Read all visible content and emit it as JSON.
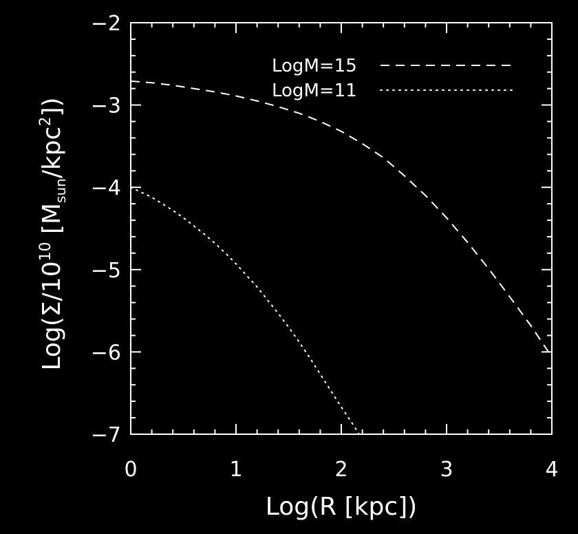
{
  "chart_data": {
    "type": "line",
    "background": "#000000",
    "foreground": "#ffffff",
    "title": "",
    "xlabel": "Log(R [kpc])",
    "ylabel": {
      "prefix": "Log(Σ/10",
      "exponent": "10",
      "open": " [M",
      "subscript": "sun",
      "middle": "/kpc",
      "power": "2",
      "close": "])"
    },
    "xlim": [
      0,
      4
    ],
    "ylim": [
      -7,
      -2
    ],
    "xticks": [
      0,
      1,
      2,
      3,
      4
    ],
    "xtick_labels": [
      "0",
      "1",
      "2",
      "3",
      "4"
    ],
    "yticks": [
      -2,
      -3,
      -4,
      -5,
      -6,
      -7
    ],
    "ytick_labels": [
      "−2",
      "−3",
      "−4",
      "−5",
      "−6",
      "−7"
    ],
    "minor_x_step": 0.2,
    "minor_y_step": 0.2,
    "grid": false,
    "legend_position": "top-right",
    "series": [
      {
        "name": "LogM=15",
        "style": "dashed",
        "x": [
          0.0,
          0.2,
          0.4,
          0.6,
          0.8,
          1.0,
          1.2,
          1.4,
          1.6,
          1.8,
          2.0,
          2.2,
          2.4,
          2.6,
          2.8,
          3.0,
          3.2,
          3.4,
          3.6,
          3.8,
          3.9,
          4.0
        ],
        "y": [
          -2.71,
          -2.73,
          -2.76,
          -2.8,
          -2.84,
          -2.89,
          -2.95,
          -3.02,
          -3.1,
          -3.2,
          -3.32,
          -3.47,
          -3.64,
          -3.86,
          -4.1,
          -4.37,
          -4.67,
          -4.99,
          -5.33,
          -5.68,
          -5.87,
          -6.06
        ]
      },
      {
        "name": "LogM=11",
        "style": "dotted",
        "x": [
          0.0,
          0.1,
          0.2,
          0.3,
          0.4,
          0.5,
          0.6,
          0.7,
          0.8,
          0.9,
          1.0,
          1.1,
          1.2,
          1.3,
          1.4,
          1.5,
          1.6,
          1.7,
          1.8,
          1.9,
          2.0,
          2.1,
          2.2
        ],
        "y": [
          -4.0,
          -4.06,
          -4.12,
          -4.2,
          -4.28,
          -4.37,
          -4.47,
          -4.57,
          -4.68,
          -4.8,
          -4.93,
          -5.07,
          -5.21,
          -5.37,
          -5.53,
          -5.7,
          -5.88,
          -6.07,
          -6.27,
          -6.47,
          -6.67,
          -6.86,
          -7.06
        ]
      }
    ]
  }
}
